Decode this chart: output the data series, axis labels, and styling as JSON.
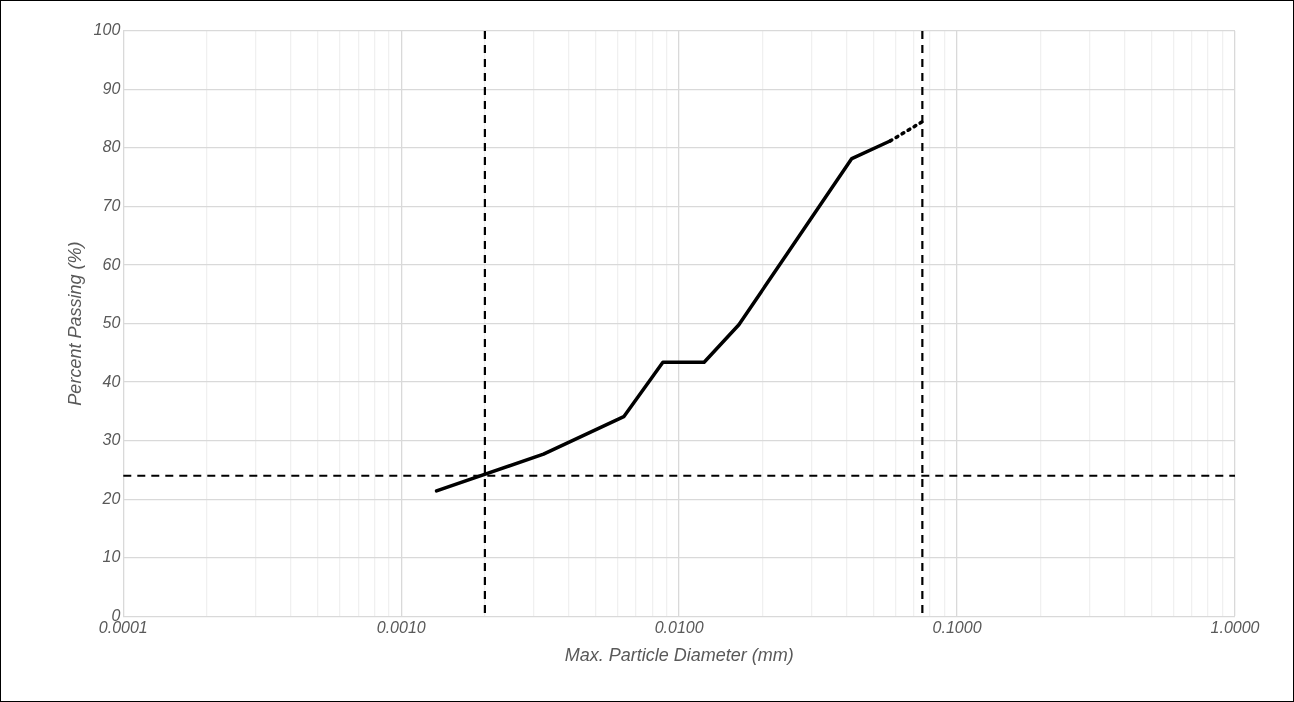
{
  "chart_data": {
    "type": "line",
    "xlabel": "Max. Particle Diameter (mm)",
    "ylabel": "Percent Passing (%)",
    "log": "x",
    "grid": true,
    "legend": false,
    "marker": "none",
    "xlim": [
      0.0001,
      1
    ],
    "ylim": [
      0,
      100
    ],
    "xticks": [
      {
        "value": 0.0001,
        "label": "0.0001"
      },
      {
        "value": 0.0002,
        "label": null
      },
      {
        "value": 0.0003,
        "label": null
      },
      {
        "value": 0.0004,
        "label": null
      },
      {
        "value": 0.0005,
        "label": null
      },
      {
        "value": 0.0006,
        "label": null
      },
      {
        "value": 0.0007,
        "label": null
      },
      {
        "value": 0.0008,
        "label": null
      },
      {
        "value": 0.0009,
        "label": null
      },
      {
        "value": 0.001,
        "label": "0.0010"
      },
      {
        "value": 0.002,
        "label": null
      },
      {
        "value": 0.003,
        "label": null
      },
      {
        "value": 0.004,
        "label": null
      },
      {
        "value": 0.005,
        "label": null
      },
      {
        "value": 0.006,
        "label": null
      },
      {
        "value": 0.007,
        "label": null
      },
      {
        "value": 0.008,
        "label": null
      },
      {
        "value": 0.009,
        "label": null
      },
      {
        "value": 0.01,
        "label": "0.0100"
      },
      {
        "value": 0.02,
        "label": null
      },
      {
        "value": 0.03,
        "label": null
      },
      {
        "value": 0.04,
        "label": null
      },
      {
        "value": 0.05,
        "label": null
      },
      {
        "value": 0.06,
        "label": null
      },
      {
        "value": 0.07,
        "label": null
      },
      {
        "value": 0.08,
        "label": null
      },
      {
        "value": 0.09,
        "label": null
      },
      {
        "value": 0.1,
        "label": "0.1000"
      },
      {
        "value": 0.2,
        "label": null
      },
      {
        "value": 0.3,
        "label": null
      },
      {
        "value": 0.4,
        "label": null
      },
      {
        "value": 0.5,
        "label": null
      },
      {
        "value": 0.6,
        "label": null
      },
      {
        "value": 0.7,
        "label": null
      },
      {
        "value": 0.8,
        "label": null
      },
      {
        "value": 0.9,
        "label": null
      },
      {
        "value": 1,
        "label": "1.0000"
      }
    ],
    "yticks": [
      0,
      10,
      20,
      30,
      40,
      50,
      60,
      70,
      80,
      90,
      100
    ],
    "series": [
      {
        "color": "#000000",
        "line_style": "solid",
        "x": [
          0.00134,
          0.00325,
          0.00632,
          0.00874,
          0.0123,
          0.0164,
          0.0418,
          0.0574
        ],
        "values": [
          21.4,
          27.7,
          34.1,
          43.4,
          43.4,
          49.8,
          78.2,
          81.2
        ]
      },
      {
        "color": "#000000",
        "line_style": "dotted",
        "x": [
          0.0574,
          0.075
        ],
        "values": [
          81.2,
          84.5
        ]
      }
    ],
    "ref_lines": [
      {
        "axis": "x",
        "value": 0.002,
        "color": "#000000",
        "line_style": "dashed"
      },
      {
        "axis": "x",
        "value": 0.075,
        "color": "#000000",
        "line_style": "dashed"
      },
      {
        "axis": "y",
        "value": 24,
        "color": "#000000",
        "line_style": "dashed"
      }
    ]
  }
}
